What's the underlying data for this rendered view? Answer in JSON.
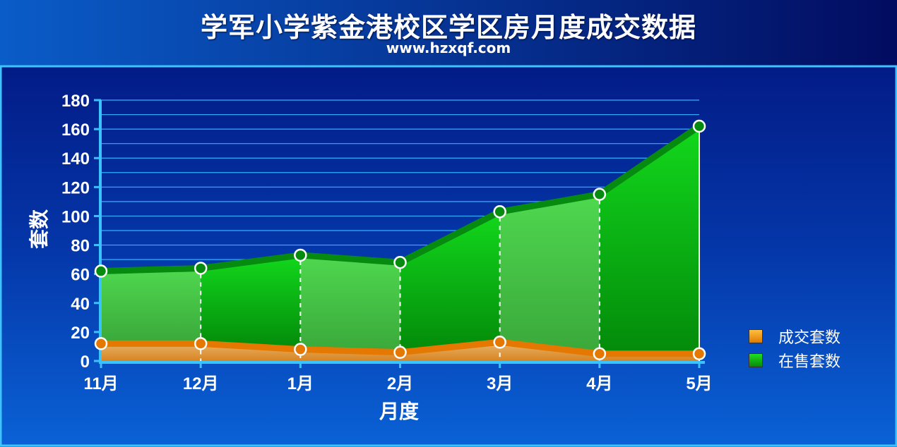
{
  "header": {
    "title": "学军小学紫金港校区学区房月度成交数据",
    "subtitle": "www.hzxqf.com"
  },
  "colors": {
    "background_top": "#02106a",
    "background_bottom": "#0a5ed0",
    "border": "#3fc3ff",
    "sold": "#e07a00",
    "on_sale": "#08a010",
    "gridline": "#2fb0ff"
  },
  "chart_data": {
    "type": "area",
    "title": "学军小学紫金港校区学区房月度成交数据",
    "xlabel": "月度",
    "ylabel": "套数",
    "categories": [
      "11月",
      "12月",
      "1月",
      "2月",
      "3月",
      "4月",
      "5月"
    ],
    "ylim": [
      0,
      180
    ],
    "yticks": [
      0,
      20,
      40,
      60,
      80,
      100,
      120,
      140,
      160,
      180
    ],
    "grid": true,
    "legend_position": "right",
    "series": [
      {
        "name": "成交套数",
        "values": [
          12,
          12,
          8,
          6,
          13,
          5,
          5
        ],
        "color": "#e07a00"
      },
      {
        "name": "在售套数",
        "values": [
          62,
          64,
          73,
          68,
          103,
          115,
          162
        ],
        "color": "#08a010"
      }
    ]
  }
}
